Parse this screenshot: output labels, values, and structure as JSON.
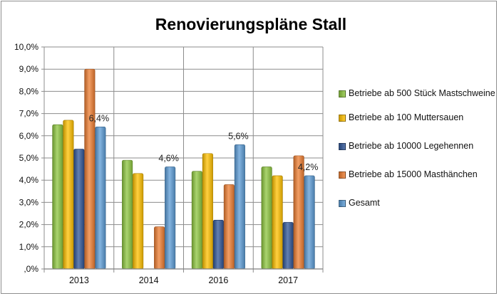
{
  "chart_data": {
    "type": "bar",
    "title": "Renovierungspläne Stall",
    "categories": [
      "2013",
      "2014",
      "2016",
      "2017"
    ],
    "ylim": [
      0,
      10
    ],
    "yticks": [
      0,
      1,
      2,
      3,
      4,
      5,
      6,
      7,
      8,
      9,
      10
    ],
    "ytick_labels": [
      ",0%",
      "1,0%",
      "2,0%",
      "3,0%",
      "4,0%",
      "5,0%",
      "6,0%",
      "7,0%",
      "8,0%",
      "9,0%",
      "10,0%"
    ],
    "grid": true,
    "legend_position": "right",
    "series": [
      {
        "name": "Betriebe ab 500 Stück Mastschweine",
        "color": "#8dc63f",
        "values": [
          6.5,
          4.9,
          4.4,
          4.6
        ]
      },
      {
        "name": "Betriebe ab 100 Muttersauen",
        "color": "#ffc000",
        "values": [
          6.7,
          4.3,
          5.2,
          4.2
        ]
      },
      {
        "name": "Betriebe ab 10000 Legehennen",
        "color": "#2f5597",
        "values": [
          5.4,
          null,
          2.2,
          2.1
        ]
      },
      {
        "name": "Betriebe ab 15000 Masthänchen",
        "color": "#ed7d31",
        "values": [
          9.0,
          1.9,
          3.8,
          5.1
        ]
      },
      {
        "name": "Gesamt",
        "color": "#5b9bd5",
        "values": [
          6.4,
          4.6,
          5.6,
          4.2
        ]
      }
    ],
    "data_labels": [
      {
        "series": 4,
        "category": 0,
        "text": "6,4%"
      },
      {
        "series": 4,
        "category": 1,
        "text": "4,6%"
      },
      {
        "series": 4,
        "category": 2,
        "text": "5,6%"
      },
      {
        "series": 4,
        "category": 3,
        "text": "4,2%"
      }
    ]
  }
}
